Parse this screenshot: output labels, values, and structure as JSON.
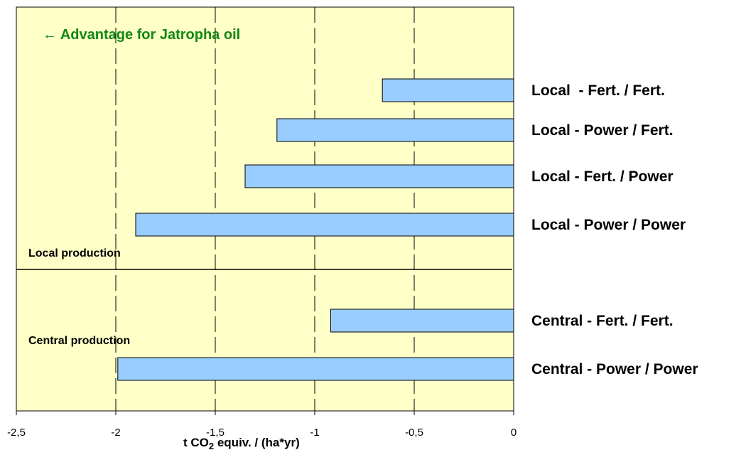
{
  "chart_data": {
    "type": "bar",
    "orientation": "horizontal",
    "categories": [
      "Local  - Fert. / Fert.",
      "Local - Power / Fert.",
      "Local - Fert. / Power",
      "Local - Power / Power",
      "Central - Fert. / Fert.",
      "Central - Power / Power"
    ],
    "values": [
      -0.66,
      -1.19,
      -1.35,
      -1.9,
      -0.92,
      -1.99
    ],
    "groups": [
      {
        "label": "Local production",
        "categories": [
          0,
          1,
          2,
          3
        ]
      },
      {
        "label": "Central production",
        "categories": [
          4,
          5
        ]
      }
    ],
    "xlim": [
      -2.5,
      0
    ],
    "xticks": [
      -2.5,
      -2,
      -1.5,
      -1,
      -0.5,
      0
    ],
    "tick_labels": [
      "-2,5",
      "-2",
      "-1,5",
      "-1",
      "-0,5",
      "0"
    ],
    "xlabel_main": "t CO",
    "xlabel_sub": "2",
    "xlabel_rest": " equiv. / (ha*yr)",
    "annotation": "← Advantage for Jatropha oil",
    "grid": "vertical dashed",
    "colors": {
      "plot_bg": "#FFFFC8",
      "bar_fill": "#99CCFF",
      "bar_stroke": "#000000",
      "annotation": "#118811"
    }
  }
}
